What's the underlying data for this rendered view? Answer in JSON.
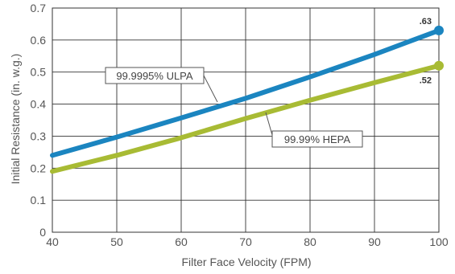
{
  "chart_data": {
    "type": "line",
    "title": "",
    "xlabel": "Filter Face Velocity (FPM)",
    "ylabel": "Initial Resistance (in. w.g.)",
    "xlim": [
      40,
      100
    ],
    "ylim": [
      0,
      0.7
    ],
    "xticks": [
      "40",
      "50",
      "60",
      "70",
      "80",
      "90",
      "100"
    ],
    "yticks": [
      "0",
      "0.1",
      "0.2",
      "0.3",
      "0.4",
      "0.5",
      "0.6",
      "0.7"
    ],
    "grid": true,
    "series": [
      {
        "name": "99.9995% ULPA",
        "color": "#1b85c0",
        "x": [
          40,
          50,
          60,
          70,
          80,
          90,
          100
        ],
        "y": [
          0.24,
          0.297,
          0.357,
          0.418,
          0.485,
          0.555,
          0.63
        ],
        "end_label": ".63"
      },
      {
        "name": "99.99% HEPA",
        "color": "#a8bb34",
        "x": [
          40,
          50,
          60,
          70,
          80,
          90,
          100
        ],
        "y": [
          0.19,
          0.24,
          0.295,
          0.355,
          0.412,
          0.467,
          0.52
        ],
        "end_label": ".52"
      }
    ],
    "annotations": [
      {
        "text": "99.9995% ULPA",
        "series": 0
      },
      {
        "text": "99.99% HEPA",
        "series": 1
      }
    ]
  }
}
